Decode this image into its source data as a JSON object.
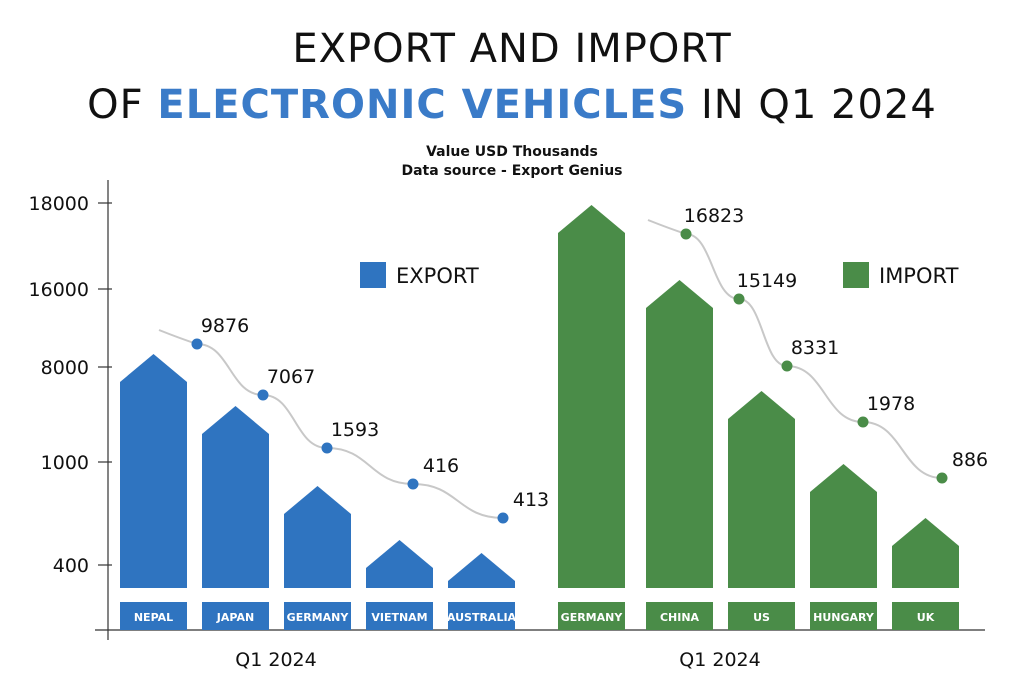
{
  "title": {
    "line1": "EXPORT AND IMPORT",
    "line2_pre": "OF ",
    "line2_highlight": "ELECTRONIC VEHICLES",
    "line2_post": " IN Q1 2024"
  },
  "subtitle": {
    "line1": "Value USD Thousands",
    "line2": "Data source - Export Genius"
  },
  "colors": {
    "export": "#2f74c0",
    "import": "#4a8c48",
    "highlight": "#3a7bc8",
    "curve": "#c8c8c8"
  },
  "chart_data": [
    {
      "type": "bar",
      "name": "export-chart",
      "categories": [
        "NEPAL",
        "JAPAN",
        "GERMANY",
        "VIETNAM",
        "AUSTRALIA"
      ],
      "series": [
        {
          "name": "EXPORT",
          "values": [
            9876,
            7067,
            1593,
            416,
            413
          ]
        }
      ],
      "data_labels": [
        "9876",
        "7067",
        "1593",
        "416",
        "413"
      ],
      "xlabel": "Q1 2024",
      "ylabel": "",
      "y_ticks": [
        "400",
        "1000",
        "8000",
        "16000",
        "18000"
      ],
      "legend": "EXPORT",
      "legend_position": "top-right"
    },
    {
      "type": "bar",
      "name": "import-chart",
      "categories": [
        "GERMANY",
        "CHINA",
        "US",
        "HUNGARY",
        "UK"
      ],
      "series": [
        {
          "name": "IMPORT",
          "values": [
            16823,
            15149,
            8331,
            1978,
            886
          ]
        }
      ],
      "data_labels": [
        "16823",
        "15149",
        "8331",
        "1978",
        "886"
      ],
      "xlabel": "Q1 2024",
      "ylabel": "",
      "legend": "IMPORT",
      "legend_position": "top-right"
    }
  ]
}
